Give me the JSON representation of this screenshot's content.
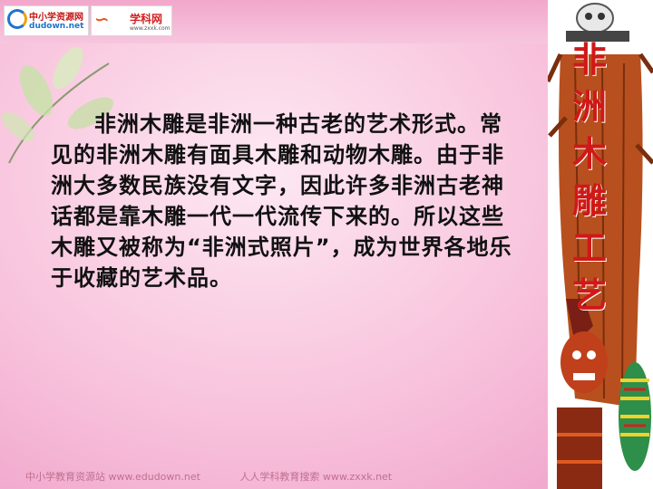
{
  "logos": {
    "left": {
      "line1": "中小学资源网",
      "line2": "dudown.net"
    },
    "right": {
      "mark": "∽",
      "name": "学科网",
      "domain": "www.zxxk.com"
    }
  },
  "title_chars": [
    "非",
    "洲",
    "木",
    "雕",
    "工",
    "艺"
  ],
  "paragraph": "非洲木雕是非洲一种古老的艺术形式。常见的非洲木雕有面具木雕和动物木雕。由于非洲大多数民族没有文字，因此许多非洲古老神话都是靠木雕一代一代流传下来的。所以这些木雕又被称为“非洲式照片”，成为世界各地乐于收藏的艺术品。",
  "footer": {
    "left": "中小学教育资源站 www.edudown.net",
    "right": "人人学科教育搜索 www.zxxk.net"
  },
  "colors": {
    "title": "#d01818",
    "background": "#f8c2dc",
    "text": "#111111"
  }
}
